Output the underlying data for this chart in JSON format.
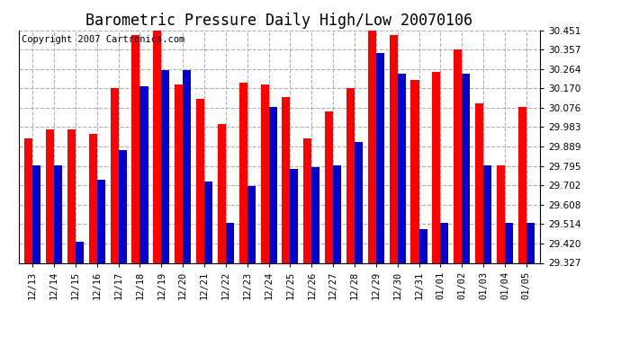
{
  "title": "Barometric Pressure Daily High/Low 20070106",
  "copyright": "Copyright 2007 Cartronics.com",
  "dates": [
    "12/13",
    "12/14",
    "12/15",
    "12/16",
    "12/17",
    "12/18",
    "12/19",
    "12/20",
    "12/21",
    "12/22",
    "12/23",
    "12/24",
    "12/25",
    "12/26",
    "12/27",
    "12/28",
    "12/29",
    "12/30",
    "12/31",
    "01/01",
    "01/02",
    "01/03",
    "01/04",
    "01/05"
  ],
  "highs": [
    29.93,
    29.97,
    29.97,
    29.95,
    30.17,
    30.43,
    30.45,
    30.19,
    30.12,
    30.0,
    30.2,
    30.19,
    30.13,
    29.93,
    30.06,
    30.17,
    30.45,
    30.43,
    30.21,
    30.25,
    30.36,
    30.1,
    29.8,
    30.08
  ],
  "lows": [
    29.8,
    29.8,
    29.43,
    29.73,
    29.87,
    30.18,
    30.26,
    30.26,
    29.72,
    29.52,
    29.7,
    30.08,
    29.78,
    29.79,
    29.8,
    29.91,
    30.34,
    30.24,
    29.49,
    29.52,
    30.24,
    29.8,
    29.52,
    29.52
  ],
  "ylim_min": 29.327,
  "ylim_max": 30.451,
  "yticks": [
    29.327,
    29.42,
    29.514,
    29.608,
    29.702,
    29.795,
    29.889,
    29.983,
    30.076,
    30.17,
    30.264,
    30.357,
    30.451
  ],
  "high_color": "#ff0000",
  "low_color": "#0000cc",
  "bg_color": "#ffffff",
  "grid_color": "#b0b0b0",
  "bar_width": 0.38,
  "title_fontsize": 12,
  "copyright_fontsize": 7.5
}
